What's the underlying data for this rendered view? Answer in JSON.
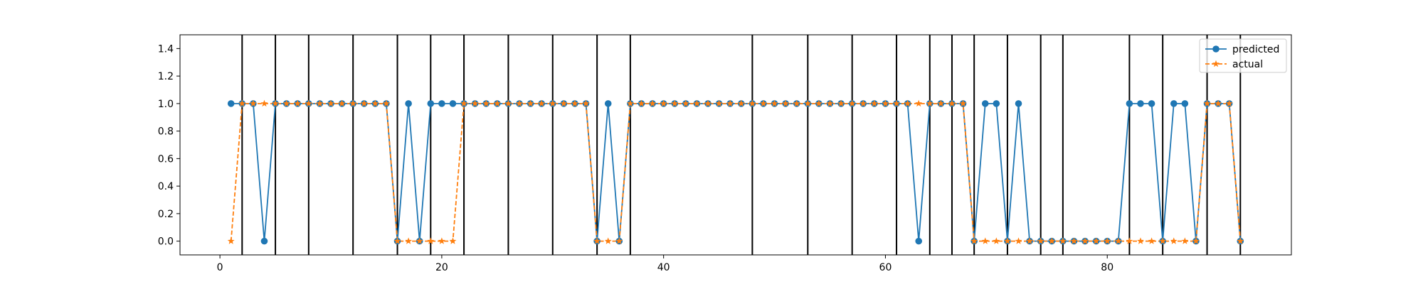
{
  "chart_data": {
    "type": "line",
    "x": [
      1,
      2,
      3,
      4,
      5,
      6,
      7,
      8,
      9,
      10,
      11,
      12,
      13,
      14,
      15,
      16,
      17,
      18,
      19,
      20,
      21,
      22,
      23,
      24,
      25,
      26,
      27,
      28,
      29,
      30,
      31,
      32,
      33,
      34,
      35,
      36,
      37,
      38,
      39,
      40,
      41,
      42,
      43,
      44,
      45,
      46,
      47,
      48,
      49,
      50,
      51,
      52,
      53,
      54,
      55,
      56,
      57,
      58,
      59,
      60,
      61,
      62,
      63,
      64,
      65,
      66,
      67,
      68,
      69,
      70,
      71,
      72,
      73,
      74,
      75,
      76,
      77,
      78,
      79,
      80,
      81,
      82,
      83,
      84,
      85,
      86,
      87,
      88,
      89,
      90,
      91,
      92
    ],
    "series": [
      {
        "name": "predicted",
        "color": "#1f77b4",
        "marker": "circle",
        "linestyle": "solid",
        "values": [
          1,
          1,
          1,
          0,
          1,
          1,
          1,
          1,
          1,
          1,
          1,
          1,
          1,
          1,
          1,
          0,
          1,
          0,
          1,
          1,
          1,
          1,
          1,
          1,
          1,
          1,
          1,
          1,
          1,
          1,
          1,
          1,
          1,
          0,
          1,
          0,
          1,
          1,
          1,
          1,
          1,
          1,
          1,
          1,
          1,
          1,
          1,
          1,
          1,
          1,
          1,
          1,
          1,
          1,
          1,
          1,
          1,
          1,
          1,
          1,
          1,
          1,
          0,
          1,
          1,
          1,
          1,
          0,
          1,
          1,
          0,
          1,
          0,
          0,
          0,
          0,
          0,
          0,
          0,
          0,
          0,
          1,
          1,
          1,
          0,
          1,
          1,
          0,
          1,
          1,
          1,
          0
        ]
      },
      {
        "name": "actual",
        "color": "#ff7f0e",
        "marker": "star",
        "linestyle": "dashed",
        "values": [
          0,
          1,
          1,
          1,
          1,
          1,
          1,
          1,
          1,
          1,
          1,
          1,
          1,
          1,
          1,
          0,
          0,
          0,
          0,
          0,
          0,
          1,
          1,
          1,
          1,
          1,
          1,
          1,
          1,
          1,
          1,
          1,
          1,
          0,
          0,
          0,
          1,
          1,
          1,
          1,
          1,
          1,
          1,
          1,
          1,
          1,
          1,
          1,
          1,
          1,
          1,
          1,
          1,
          1,
          1,
          1,
          1,
          1,
          1,
          1,
          1,
          1,
          1,
          1,
          1,
          1,
          1,
          0,
          0,
          0,
          0,
          0,
          0,
          0,
          0,
          0,
          0,
          0,
          0,
          0,
          0,
          0,
          0,
          0,
          0,
          0,
          0,
          0,
          1,
          1,
          1,
          0
        ]
      }
    ],
    "vertical_lines": [
      2,
      5,
      8,
      12,
      16,
      19,
      22,
      26,
      30,
      34,
      37,
      48,
      53,
      57,
      61,
      64,
      66,
      68,
      71,
      74,
      76,
      82,
      85,
      89,
      92
    ],
    "xlim": [
      -3.6,
      96.6
    ],
    "ylim": [
      -0.1,
      1.5
    ],
    "xticks": [
      0,
      20,
      40,
      60,
      80
    ],
    "yticks": [
      "0.0",
      "0.2",
      "0.4",
      "0.6",
      "0.8",
      "1.0",
      "1.2",
      "1.4"
    ],
    "legend_position": "top-right",
    "grid": false
  }
}
